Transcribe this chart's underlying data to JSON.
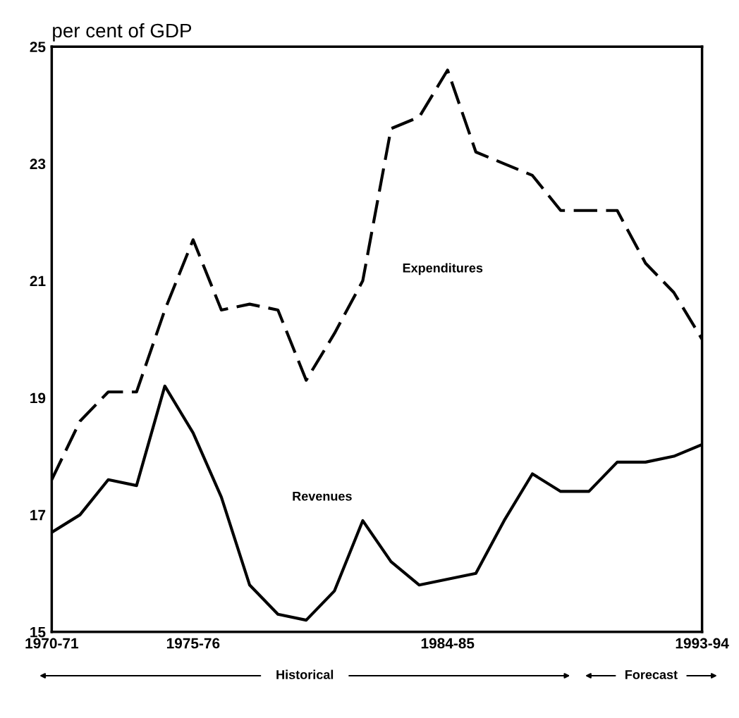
{
  "chart_data": {
    "type": "line",
    "ylabel": "per cent of GDP",
    "categories": [
      "1970-71",
      null,
      null,
      null,
      null,
      "1975-76",
      null,
      null,
      null,
      null,
      null,
      null,
      null,
      null,
      "1984-85",
      null,
      null,
      null,
      null,
      null,
      null,
      null,
      null,
      "1993-94"
    ],
    "series": [
      {
        "name": "Expenditures",
        "color": "#000000",
        "line_style": "dashed",
        "values": [
          17.6,
          18.6,
          19.1,
          19.1,
          20.5,
          21.7,
          20.5,
          20.6,
          20.5,
          19.3,
          20.1,
          21.0,
          23.6,
          23.8,
          24.6,
          23.2,
          23.0,
          22.8,
          22.2,
          22.2,
          22.2,
          21.3,
          20.8,
          20.0
        ]
      },
      {
        "name": "Revenues",
        "color": "#000000",
        "line_style": "solid",
        "values": [
          16.7,
          17.0,
          17.6,
          17.5,
          19.2,
          18.4,
          17.3,
          15.8,
          15.3,
          15.2,
          15.7,
          16.9,
          16.2,
          15.8,
          15.9,
          16.0,
          16.9,
          17.7,
          17.4,
          17.4,
          17.9,
          17.9,
          18.0,
          18.2
        ]
      }
    ],
    "ylim": [
      15,
      25
    ],
    "yticks": [
      15,
      17,
      19,
      21,
      23,
      25
    ],
    "grid": false,
    "legend": false,
    "marker": "none",
    "annotations": [
      "Historical",
      "Forecast"
    ]
  }
}
